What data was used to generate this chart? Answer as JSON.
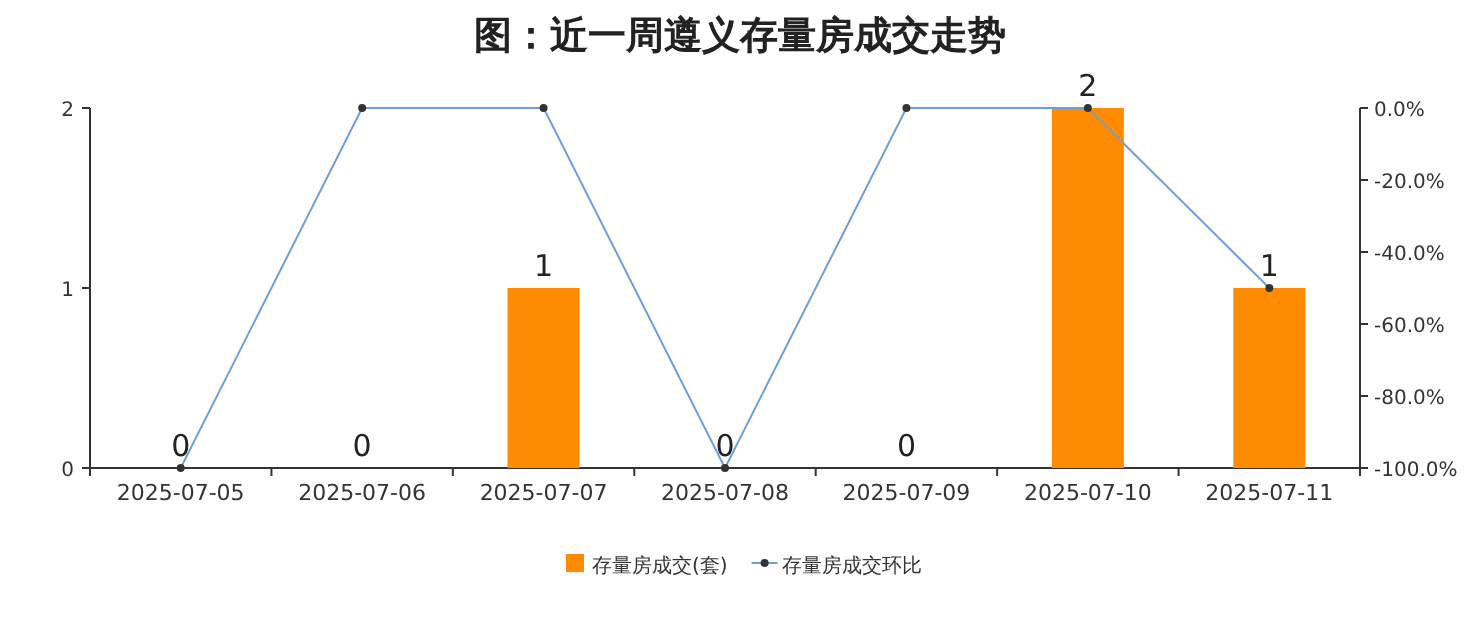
{
  "chart_data": {
    "type": "bar",
    "title": "图：近一周遵义存量房成交走势",
    "categories": [
      "2025-07-05",
      "2025-07-06",
      "2025-07-07",
      "2025-07-08",
      "2025-07-09",
      "2025-07-10",
      "2025-07-11"
    ],
    "series": [
      {
        "name": "存量房成交(套)",
        "color": "#ff8c00",
        "values": [
          0,
          0,
          1,
          0,
          0,
          2,
          1
        ],
        "value_labels": [
          "0",
          "0",
          "1",
          "0",
          "0",
          "2",
          "1"
        ]
      },
      {
        "name": "存量房成交环比",
        "type": "line",
        "axis": "y2",
        "color": "#6f9fd8",
        "marker": "circle",
        "values": [
          -100,
          0,
          0,
          -100,
          0,
          0,
          -50
        ]
      }
    ],
    "ylim": [
      0,
      2
    ],
    "yticks": [
      0,
      1,
      2
    ],
    "y2lim": [
      -100,
      0
    ],
    "y2ticks": [
      {
        "value": 0,
        "label": "0.0%"
      },
      {
        "value": -20,
        "label": "-20.0%"
      },
      {
        "value": -40,
        "label": "-40.0%"
      },
      {
        "value": -60,
        "label": "-60.0%"
      },
      {
        "value": -80,
        "label": "-80.0%"
      },
      {
        "value": -100,
        "label": "-100.0%"
      }
    ],
    "legend": "bottom"
  }
}
